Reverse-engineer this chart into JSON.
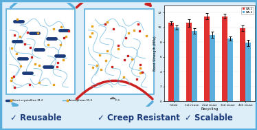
{
  "bar_categories": [
    "Initial",
    "1st reuse",
    "2nd reuse",
    "3rd reuse",
    "4th reuse"
  ],
  "da1_values": [
    10.6,
    10.6,
    11.5,
    11.5,
    9.9
  ],
  "da4_values": [
    10.0,
    9.5,
    9.0,
    8.5,
    7.9
  ],
  "da1_errors": [
    0.25,
    0.5,
    0.4,
    0.35,
    0.4
  ],
  "da4_errors": [
    0.3,
    0.35,
    0.45,
    0.3,
    0.4
  ],
  "da1_color": "#e03030",
  "da4_color": "#5aaedc",
  "ylabel": "Bond Strength (MPa)",
  "xlabel": "Recycling",
  "ylim": [
    0,
    13
  ],
  "yticks": [
    0,
    2,
    4,
    6,
    8,
    10,
    12
  ],
  "legend_labels": [
    "DA-1",
    "DA-4"
  ],
  "fig_bg": "#deeef8",
  "border_color": "#5aaedc",
  "box_color": "#5aaedc",
  "chain_color": "#5aaedc",
  "crystal_color": "#1a3a7a",
  "orange_node": "#e8a020",
  "red_node": "#cc2020",
  "arrow_top_color": "#cc2020",
  "arrow_bot_color": "#5aaedc",
  "bottom_text": [
    "✓ Reusable",
    "✓ Creep Resistant",
    "✓ Scalable"
  ],
  "bottom_color": "#1a3a7a",
  "legend_text_left": [
    "Semi-crystalline M-2",
    "Amorphous M-3",
    "F-3"
  ]
}
